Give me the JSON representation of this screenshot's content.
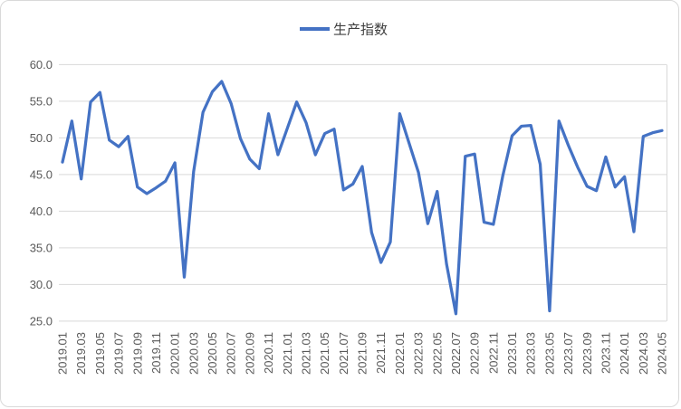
{
  "legend": {
    "label": "生产指数"
  },
  "chart_data": {
    "type": "line",
    "title": "",
    "xlabel": "",
    "ylabel": "",
    "legend_entries": [
      "生产指数"
    ],
    "legend_position": "top-center",
    "grid": true,
    "ylim": [
      25,
      60
    ],
    "ytick_step": 5,
    "ytick_labels": [
      "60.0",
      "55.0",
      "50.0",
      "45.0",
      "40.0",
      "35.0",
      "30.0",
      "25.0"
    ],
    "x_label_every_n": 2,
    "categories": [
      "2019.01",
      "2019.02",
      "2019.03",
      "2019.04",
      "2019.05",
      "2019.06",
      "2019.07",
      "2019.08",
      "2019.09",
      "2019.10",
      "2019.11",
      "2019.12",
      "2020.01",
      "2020.02",
      "2020.03",
      "2020.04",
      "2020.05",
      "2020.06",
      "2020.07",
      "2020.08",
      "2020.09",
      "2020.10",
      "2020.11",
      "2020.12",
      "2021.01",
      "2021.02",
      "2021.03",
      "2021.04",
      "2021.05",
      "2021.06",
      "2021.07",
      "2021.08",
      "2021.09",
      "2021.10",
      "2021.11",
      "2021.12",
      "2022.01",
      "2022.02",
      "2022.03",
      "2022.04",
      "2022.05",
      "2022.06",
      "2022.07",
      "2022.08",
      "2022.09",
      "2022.10",
      "2022.11",
      "2022.12",
      "2023.01",
      "2023.02",
      "2023.03",
      "2023.04",
      "2023.05",
      "2023.06",
      "2023.07",
      "2023.08",
      "2023.09",
      "2023.10",
      "2023.11",
      "2023.12",
      "2024.01",
      "2024.02",
      "2024.03",
      "2024.04",
      "2024.05"
    ],
    "series": [
      {
        "name": "生产指数",
        "color": "#4472C4",
        "values": [
          46.7,
          52.3,
          44.4,
          54.9,
          56.2,
          49.7,
          48.8,
          50.2,
          43.3,
          42.4,
          43.2,
          44.1,
          46.6,
          31.0,
          45.4,
          53.5,
          56.3,
          57.7,
          54.7,
          49.9,
          47.1,
          45.8,
          53.3,
          47.7,
          51.3,
          54.9,
          52.1,
          47.7,
          50.6,
          51.2,
          42.9,
          43.7,
          46.1,
          37.1,
          33.0,
          35.8,
          53.3,
          49.3,
          45.3,
          38.3,
          42.7,
          32.8,
          26.0,
          47.5,
          47.8,
          38.5,
          38.2,
          44.8,
          50.3,
          51.6,
          51.7,
          46.4,
          26.4,
          52.3,
          49.0,
          46.0,
          43.4,
          42.8,
          47.4,
          43.3,
          44.7,
          37.2,
          50.2,
          50.7,
          51.0
        ]
      }
    ],
    "colors": {
      "line": "#4472C4",
      "gridline": "#D9D9D9",
      "plot_right_border": "#D9D9D9",
      "axis_text": "#595959",
      "legend_text": "#404040",
      "frame": "#D9D9D9",
      "background": "#FFFFFF"
    }
  }
}
